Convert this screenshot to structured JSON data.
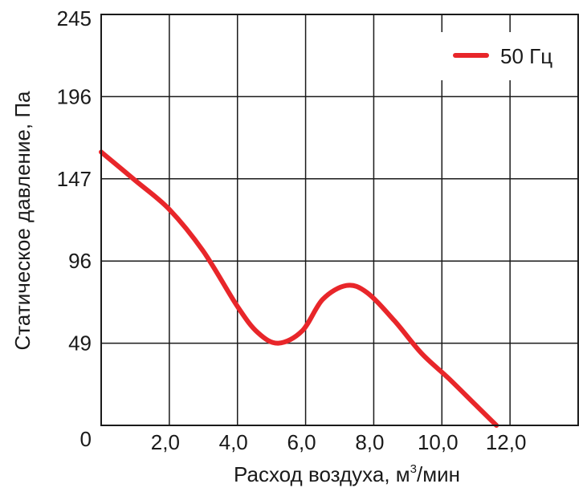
{
  "chart_data": {
    "type": "line",
    "xlabel": "Расход воздуха, м",
    "xlabel_sup": "3",
    "xlabel_suffix": "/мин",
    "ylabel": "Статическое давление, Па",
    "xlim": [
      0,
      14
    ],
    "x_ticks": [
      {
        "value": 0,
        "label": ""
      },
      {
        "value": 2,
        "label": "2,0"
      },
      {
        "value": 4,
        "label": "4,0"
      },
      {
        "value": 6,
        "label": "6,0"
      },
      {
        "value": 8,
        "label": "8,0"
      },
      {
        "value": 10,
        "label": "10,0"
      },
      {
        "value": 12,
        "label": "12,0"
      },
      {
        "value": 14,
        "label": ""
      }
    ],
    "y_ticks": [
      {
        "value": 0,
        "label": "0"
      },
      {
        "value": 49,
        "label": "49"
      },
      {
        "value": 96,
        "label": "96"
      },
      {
        "value": 147,
        "label": "147"
      },
      {
        "value": 196,
        "label": "196"
      },
      {
        "value": 245,
        "label": "245"
      }
    ],
    "legend": {
      "position": "top-right"
    },
    "series": [
      {
        "name": "50 Гц",
        "color": "#e8262a",
        "x": [
          0,
          1,
          2,
          3,
          4,
          4.6,
          5.2,
          5.9,
          6.5,
          7.2,
          7.8,
          8.6,
          9.4,
          10.2,
          11,
          11.6
        ],
        "y": [
          163,
          146,
          128,
          102,
          70,
          55,
          49,
          56,
          74,
          82,
          78,
          62,
          43,
          28,
          12,
          0
        ]
      }
    ]
  }
}
